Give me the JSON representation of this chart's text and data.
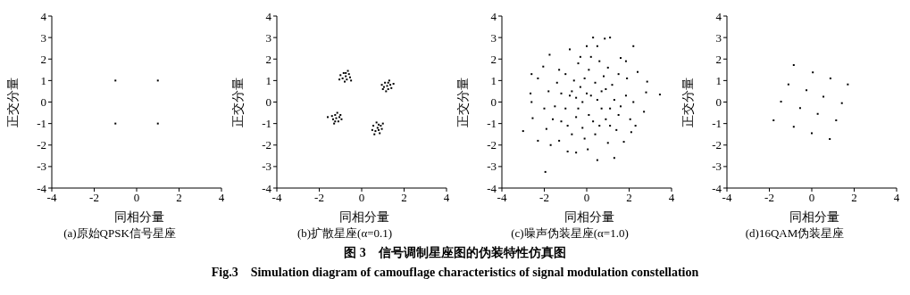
{
  "chart_data": [
    {
      "type": "scatter",
      "title": "(a)原始QPSK信号星座",
      "xlabel": "同相分量",
      "ylabel": "正交分量",
      "color": "#000000",
      "marker": "square",
      "xlim": [
        -4,
        4
      ],
      "ylim": [
        -4,
        4
      ],
      "xticks": [
        -4,
        -2,
        0,
        2,
        4
      ],
      "yticks": [
        -4,
        -3,
        -2,
        -1,
        0,
        1,
        2,
        3,
        4
      ],
      "x": [
        -1,
        1,
        -1,
        1
      ],
      "values": [
        1,
        1,
        -1,
        -1
      ],
      "annotations": [
        "图 3　信号调制星座图的伪装特性仿真图",
        "Fig.3　Simulation diagram of camouflage characteristics of signal modulation constellation"
      ]
    },
    {
      "type": "scatter",
      "title": "(b)扩散星座(α=0.1)",
      "xlabel": "同相分量",
      "ylabel": "正交分量",
      "color": "#000000",
      "marker": "square",
      "xlim": [
        -4,
        4
      ],
      "ylim": [
        -4,
        4
      ],
      "xticks": [
        -4,
        -2,
        0,
        2,
        4
      ],
      "yticks": [
        -4,
        -3,
        -2,
        -1,
        0,
        1,
        2,
        3,
        4
      ],
      "x": [
        -0.75,
        -0.6,
        -0.9,
        -0.7,
        -0.85,
        -0.55,
        -1.0,
        -0.65,
        -0.8,
        -0.5,
        -1.05,
        -0.75,
        1.2,
        1.35,
        1.05,
        1.25,
        1.1,
        1.4,
        0.95,
        1.3,
        1.15,
        1.5,
        1.0,
        1.25,
        -1.2,
        -1.05,
        -1.35,
        -1.25,
        -1.1,
        -1.4,
        -0.95,
        -1.3,
        -1.15,
        -1.6,
        -1.0,
        -1.25,
        0.75,
        0.9,
        0.5,
        0.8,
        0.65,
        0.95,
        0.55,
        0.85,
        0.7,
        1.0,
        0.6,
        0.8
      ],
      "values": [
        1.2,
        1.3,
        1.1,
        1.05,
        1.35,
        1.15,
        1.25,
        1.45,
        0.95,
        1.0,
        1.05,
        1.35,
        0.75,
        0.8,
        0.7,
        0.6,
        0.9,
        0.65,
        0.8,
        1.0,
        0.5,
        0.85,
        0.6,
        0.9,
        -0.75,
        -0.7,
        -0.8,
        -0.6,
        -0.9,
        -0.65,
        -0.8,
        -1.0,
        -0.5,
        -0.7,
        -0.6,
        -0.9,
        -1.2,
        -1.1,
        -1.3,
        -1.05,
        -1.35,
        -1.25,
        -1.1,
        -1.45,
        -0.95,
        -1.0,
        -1.5,
        -1.3
      ]
    },
    {
      "type": "scatter",
      "title": "(c)噪声伪装星座(α=1.0)",
      "xlabel": "同相分量",
      "ylabel": "正交分量",
      "color": "#000000",
      "marker": "square",
      "xlim": [
        -4,
        4
      ],
      "ylim": [
        -4,
        4
      ],
      "xticks": [
        -4,
        -2,
        0,
        2,
        4
      ],
      "yticks": [
        -4,
        -3,
        -2,
        -1,
        0,
        1,
        2,
        3,
        4
      ],
      "x": [
        -3,
        -1.95,
        3.45,
        2.2,
        0.3,
        1.1,
        0.85,
        -2.6,
        2.8,
        2.85,
        2.7,
        -1.75,
        -0.8,
        0,
        0.5,
        1.6,
        1.85,
        2.4,
        -2.3,
        -2.05,
        -2.65,
        -2.6,
        -2.55,
        -2.3,
        -1.9,
        -1.7,
        -1.3,
        -0.9,
        -0.5,
        0.05,
        0.5,
        1.3,
        1.0,
        1.75,
        2.1,
        2.3,
        2.05,
        1.85,
        1.9,
        1.5,
        1.0,
        0.6,
        0.1,
        -0.4,
        -1.0,
        -1.4,
        -1.8,
        -1.5,
        -1.2,
        -0.7,
        -0.2,
        0.4,
        1.1,
        1.5,
        1.3,
        0.9,
        0.4,
        -0.3,
        -0.8,
        -1.0,
        -0.5,
        0.1,
        0.7,
        0.2,
        -0.2,
        0.5,
        -0.6,
        0.8,
        1.2,
        -1.2,
        -0.9,
        0.3,
        0.9,
        -0.1,
        1.6,
        -1.6,
        -0.4,
        0.6,
        -0.7,
        0.0,
        1.1,
        -1.3,
        0.2,
        -0.1,
        1.4,
        -2.0,
        2.2,
        -0.3,
        0.7,
        -0.5
      ],
      "values": [
        -1.35,
        -3.25,
        0.35,
        2.6,
        3,
        3,
        2.95,
        1.3,
        0.45,
        0.95,
        -0.45,
        2.2,
        2.45,
        2.6,
        2.6,
        2.05,
        1.9,
        1.4,
        1.1,
        1.65,
        0.4,
        0,
        -0.75,
        -1.8,
        -1.25,
        -2,
        -1.8,
        -2.3,
        -2.35,
        -2.2,
        -2.7,
        -2.6,
        -1.9,
        -1.85,
        -1.4,
        -1.1,
        -0.8,
        0.3,
        1.1,
        1.3,
        1.6,
        1.9,
        1.5,
        1.8,
        1.3,
        0.9,
        0.5,
        -0.2,
        -0.9,
        -1.5,
        -1.2,
        -1.5,
        -1.1,
        -0.6,
        0.1,
        0.6,
        0.9,
        0.7,
        0.3,
        -0.3,
        -0.7,
        -0.6,
        -0.3,
        0.3,
        0,
        0.1,
        1.0,
        1.2,
        0.8,
        0.4,
        -1.1,
        -0.9,
        -0.8,
        1.1,
        -0.2,
        -0.8,
        -0.3,
        -1.1,
        0.5,
        0.4,
        -0.3,
        1.5,
        2.1,
        -1.7,
        -1.3,
        -0.3,
        0.0,
        2.1,
        0.5,
        0.2
      ]
    },
    {
      "type": "scatter",
      "title": "(d)16QAM伪装星座",
      "xlabel": "同相分量",
      "ylabel": "正交分量",
      "color": "#000000",
      "marker": "square",
      "xlim": [
        -4,
        4
      ],
      "ylim": [
        -4,
        4
      ],
      "xticks": [
        -4,
        -2,
        0,
        2,
        4
      ],
      "yticks": [
        -4,
        -3,
        -2,
        -1,
        0,
        1,
        2,
        3,
        4
      ],
      "x": [
        -0.85,
        0.05,
        0.88,
        1.7,
        -1.1,
        -0.25,
        0.55,
        1.42,
        -1.45,
        -0.55,
        0.28,
        1.15,
        -1.8,
        -0.85,
        0,
        0.85
      ],
      "values": [
        1.72,
        1.38,
        1.1,
        0.82,
        0.82,
        0.55,
        0.25,
        -0.05,
        0.02,
        -0.28,
        -0.55,
        -0.85,
        -0.85,
        -1.15,
        -1.45,
        -1.72
      ]
    }
  ]
}
